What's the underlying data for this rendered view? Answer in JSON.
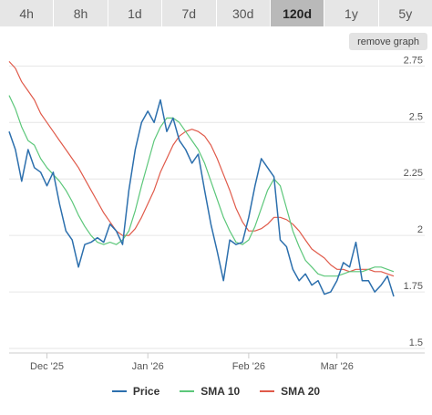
{
  "tabs": [
    {
      "label": "4h",
      "active": false
    },
    {
      "label": "8h",
      "active": false
    },
    {
      "label": "1d",
      "active": false
    },
    {
      "label": "7d",
      "active": false
    },
    {
      "label": "30d",
      "active": false
    },
    {
      "label": "120d",
      "active": true
    },
    {
      "label": "1y",
      "active": false
    },
    {
      "label": "5y",
      "active": false
    }
  ],
  "remove_graph_label": "remove graph",
  "colors": {
    "price": "#2c6fad",
    "sma10": "#5cc77a",
    "sma20": "#e05a4a",
    "grid": "#e6e6e6",
    "active_tab": "#b9b9b9"
  },
  "chart_data": {
    "type": "line",
    "x": [
      "Nov 19 '25",
      "Nov 21",
      "Nov 23",
      "Nov 25",
      "Nov 27",
      "Nov 29",
      "Dec 1 '25",
      "Dec 3",
      "Dec 5",
      "Dec 7",
      "Dec 9",
      "Dec 11",
      "Dec 13",
      "Dec 15",
      "Dec 17",
      "Dec 19",
      "Dec 21",
      "Dec 23",
      "Dec 25",
      "Dec 27",
      "Dec 29",
      "Dec 31",
      "Jan 1 '26",
      "Jan 3",
      "Jan 5",
      "Jan 7",
      "Jan 9",
      "Jan 11",
      "Jan 13",
      "Jan 15",
      "Jan 17",
      "Jan 19",
      "Jan 21",
      "Jan 23",
      "Jan 25",
      "Jan 27",
      "Jan 29",
      "Jan 31",
      "Feb 1 '26",
      "Feb 3",
      "Feb 5",
      "Feb 7",
      "Feb 9",
      "Feb 11",
      "Feb 13",
      "Feb 15",
      "Feb 17",
      "Feb 19",
      "Feb 21",
      "Feb 23",
      "Feb 25",
      "Feb 27",
      "Mar 1 '26",
      "Mar 3",
      "Mar 5",
      "Mar 7",
      "Mar 9",
      "Mar 11",
      "Mar 13",
      "Mar 15",
      "Mar 17",
      "Mar 19"
    ],
    "series": [
      {
        "name": "Price",
        "values": [
          2.46,
          2.38,
          2.24,
          2.38,
          2.3,
          2.28,
          2.22,
          2.28,
          2.14,
          2.02,
          1.98,
          1.86,
          1.96,
          1.97,
          1.99,
          1.97,
          2.05,
          2.02,
          1.96,
          2.2,
          2.38,
          2.5,
          2.55,
          2.5,
          2.6,
          2.46,
          2.52,
          2.42,
          2.38,
          2.32,
          2.36,
          2.2,
          2.05,
          1.93,
          1.8,
          1.98,
          1.96,
          1.97,
          2.08,
          2.22,
          2.34,
          2.3,
          2.26,
          1.98,
          1.95,
          1.85,
          1.8,
          1.83,
          1.78,
          1.8,
          1.74,
          1.75,
          1.8,
          1.88,
          1.86,
          1.97,
          1.8,
          1.8,
          1.75,
          1.78,
          1.82,
          1.73
        ]
      },
      {
        "name": "SMA 10",
        "values": [
          2.62,
          2.56,
          2.48,
          2.42,
          2.4,
          2.34,
          2.3,
          2.27,
          2.24,
          2.2,
          2.15,
          2.09,
          2.04,
          2.0,
          1.97,
          1.96,
          1.97,
          1.96,
          1.98,
          2.02,
          2.11,
          2.22,
          2.32,
          2.42,
          2.48,
          2.52,
          2.52,
          2.5,
          2.46,
          2.42,
          2.38,
          2.32,
          2.24,
          2.16,
          2.08,
          2.02,
          1.97,
          1.96,
          1.98,
          2.04,
          2.12,
          2.2,
          2.25,
          2.22,
          2.12,
          2.02,
          1.95,
          1.89,
          1.86,
          1.83,
          1.82,
          1.82,
          1.82,
          1.83,
          1.84,
          1.84,
          1.84,
          1.85,
          1.86,
          1.86,
          1.85,
          1.84
        ]
      },
      {
        "name": "SMA 20",
        "values": [
          2.77,
          2.74,
          2.68,
          2.64,
          2.6,
          2.54,
          2.5,
          2.46,
          2.42,
          2.38,
          2.34,
          2.3,
          2.25,
          2.2,
          2.15,
          2.1,
          2.06,
          2.02,
          2.0,
          2.0,
          2.03,
          2.08,
          2.14,
          2.2,
          2.28,
          2.34,
          2.4,
          2.44,
          2.46,
          2.47,
          2.46,
          2.44,
          2.4,
          2.34,
          2.27,
          2.2,
          2.12,
          2.06,
          2.02,
          2.02,
          2.03,
          2.05,
          2.08,
          2.08,
          2.07,
          2.05,
          2.02,
          1.98,
          1.94,
          1.92,
          1.9,
          1.87,
          1.85,
          1.85,
          1.84,
          1.85,
          1.85,
          1.85,
          1.84,
          1.84,
          1.83,
          1.82
        ]
      }
    ],
    "ylim": [
      1.5,
      2.8
    ],
    "y_ticks": [
      "1.5",
      "1.75",
      "2",
      "2.25",
      "2.5",
      "2.75"
    ],
    "y_tick_values": [
      1.5,
      1.75,
      2,
      2.25,
      2.5,
      2.75
    ],
    "x_ticks": [
      "Dec '25",
      "Jan '26",
      "Feb '26",
      "Mar '26"
    ],
    "x_tick_dates": [
      "Dec 1 '25",
      "Jan 1 '26",
      "Feb 1 '26",
      "Mar 1 '26"
    ],
    "grid": true,
    "legend_position": "bottom"
  }
}
